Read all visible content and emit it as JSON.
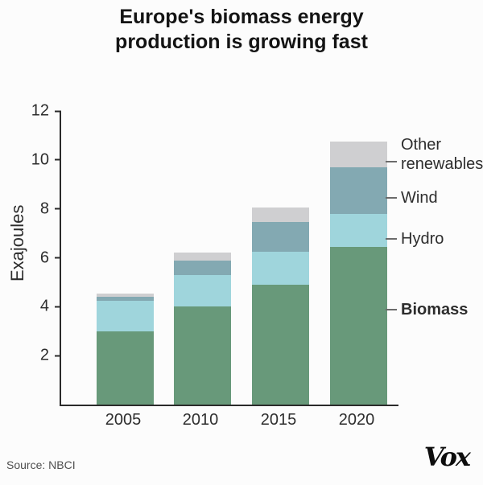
{
  "title": "Europe's biomass energy production is growing fast",
  "source": "Source: NBCI",
  "logo": "Vox",
  "colors": {
    "biomass": "#68997A",
    "hydro": "#9FD5DC",
    "wind": "#83A9B2",
    "other_renewables": "#CFCFD1",
    "axis": "#2b2b2b"
  },
  "chart_data": {
    "type": "bar",
    "stacked": true,
    "title": "Europe's biomass energy production is growing fast",
    "categories": [
      "2005",
      "2010",
      "2015",
      "2020"
    ],
    "series": [
      {
        "name": "Biomass",
        "color": "#68997A",
        "values": [
          3.0,
          4.0,
          4.9,
          6.45
        ]
      },
      {
        "name": "Hydro",
        "color": "#9FD5DC",
        "values": [
          1.25,
          1.3,
          1.35,
          1.35
        ]
      },
      {
        "name": "Wind",
        "color": "#83A9B2",
        "values": [
          0.15,
          0.6,
          1.2,
          1.9
        ]
      },
      {
        "name": "Other renewables",
        "color": "#CFCFD1",
        "values": [
          0.15,
          0.3,
          0.6,
          1.05
        ]
      }
    ],
    "totals": [
      4.55,
      6.2,
      8.05,
      10.75
    ],
    "xlabel": "",
    "ylabel": "Exajoules",
    "yticks": [
      2,
      4,
      6,
      8,
      10,
      12
    ],
    "ylim": [
      0,
      12
    ],
    "grid": false,
    "legend_position": "right-annotations"
  }
}
